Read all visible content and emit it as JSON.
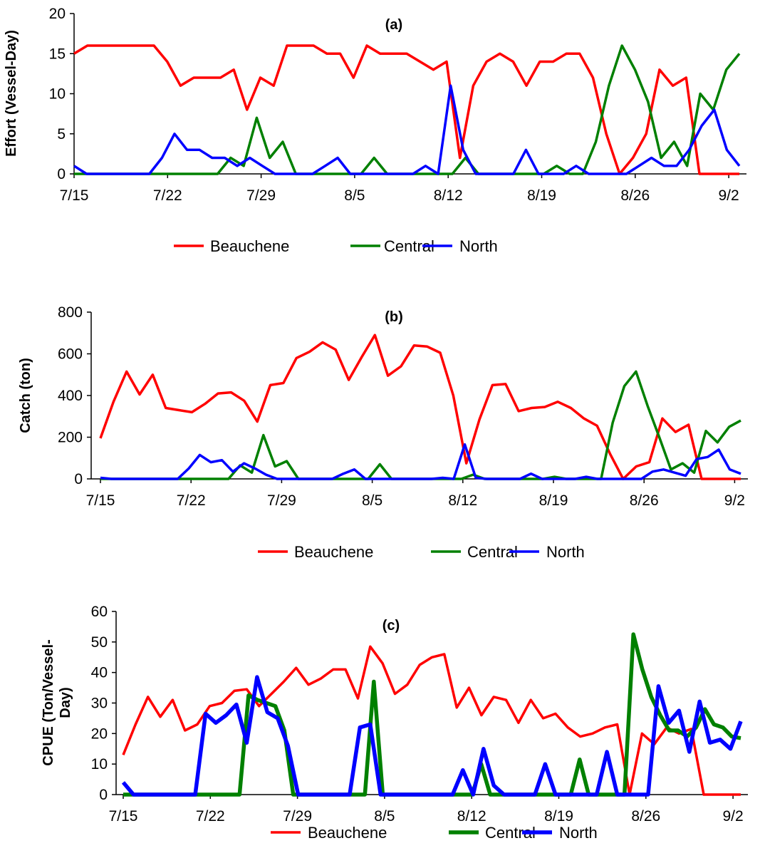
{
  "colors": {
    "beauchene": "#ff0000",
    "central": "#008000",
    "north": "#0000ff",
    "axis": "#000000",
    "background": "#ffffff"
  },
  "chart_data": [
    {
      "type": "line",
      "panel_label": "(a)",
      "ylabel": "Effort (Vessel-Day)",
      "ylim": [
        0,
        20
      ],
      "yticks": [
        0,
        5,
        10,
        15,
        20
      ],
      "x_start": "7/15",
      "xticks": [
        "7/15",
        "7/22",
        "7/29",
        "8/5",
        "8/12",
        "8/19",
        "8/26",
        "9/2"
      ],
      "grid": false,
      "legend_position": "bottom",
      "series": [
        {
          "name": "Beauchene",
          "color": "#ff0000",
          "values": [
            15,
            16,
            16,
            16,
            16,
            16,
            16,
            14,
            11,
            12,
            12,
            12,
            13,
            8,
            12,
            11,
            16,
            16,
            16,
            15,
            15,
            12,
            16,
            15,
            15,
            15,
            14,
            13,
            14,
            2,
            11,
            14,
            15,
            14,
            11,
            14,
            14,
            15,
            15,
            12,
            5,
            0,
            2,
            5,
            13,
            11,
            12,
            0,
            0,
            0,
            0
          ]
        },
        {
          "name": "Central",
          "color": "#008000",
          "values": [
            0,
            0,
            0,
            0,
            0,
            0,
            0,
            0,
            0,
            0,
            0,
            0,
            2,
            1,
            7,
            2,
            4,
            0,
            0,
            0,
            0,
            0,
            0,
            2,
            0,
            0,
            0,
            0,
            0,
            0,
            2,
            0,
            0,
            0,
            0,
            0,
            0,
            1,
            0,
            0,
            4,
            11,
            16,
            13,
            9,
            2,
            4,
            1,
            10,
            8,
            13,
            15
          ]
        },
        {
          "name": "North",
          "color": "#0000ff",
          "values": [
            1,
            0,
            0,
            0,
            0,
            0,
            0,
            2,
            5,
            3,
            3,
            2,
            2,
            1,
            2,
            1,
            0,
            0,
            0,
            0,
            1,
            2,
            0,
            0,
            0,
            0,
            0,
            0,
            1,
            0,
            11,
            3,
            0,
            0,
            0,
            0,
            3,
            0,
            0,
            0,
            1,
            0,
            0,
            0,
            0,
            1,
            2,
            1,
            1,
            3,
            6,
            8,
            3,
            1
          ]
        }
      ]
    },
    {
      "type": "line",
      "panel_label": "(b)",
      "ylabel": "Catch (ton)",
      "ylim": [
        0,
        800
      ],
      "yticks": [
        0,
        200,
        400,
        600,
        800
      ],
      "x_start": "7/15",
      "xticks": [
        "7/15",
        "7/22",
        "7/29",
        "8/5",
        "8/12",
        "8/19",
        "8/26",
        "9/2"
      ],
      "grid": false,
      "legend_position": "bottom",
      "series": [
        {
          "name": "Beauchene",
          "color": "#ff0000",
          "values": [
            195,
            370,
            515,
            405,
            500,
            340,
            330,
            320,
            360,
            410,
            415,
            375,
            275,
            450,
            460,
            580,
            610,
            655,
            620,
            475,
            585,
            690,
            495,
            540,
            640,
            635,
            605,
            400,
            75,
            285,
            450,
            455,
            325,
            340,
            345,
            370,
            340,
            290,
            255,
            120,
            0,
            60,
            80,
            290,
            225,
            260,
            0,
            0,
            0,
            0
          ]
        },
        {
          "name": "Central",
          "color": "#008000",
          "values": [
            0,
            0,
            0,
            0,
            0,
            0,
            0,
            0,
            0,
            0,
            0,
            0,
            65,
            30,
            210,
            60,
            85,
            0,
            0,
            0,
            0,
            0,
            0,
            0,
            70,
            0,
            0,
            0,
            0,
            0,
            0,
            0,
            20,
            0,
            0,
            0,
            0,
            0,
            0,
            10,
            0,
            0,
            0,
            0,
            270,
            445,
            515,
            350,
            200,
            45,
            75,
            30,
            230,
            175,
            250,
            280
          ]
        },
        {
          "name": "North",
          "color": "#0000ff",
          "values": [
            5,
            0,
            0,
            0,
            0,
            0,
            0,
            0,
            50,
            115,
            80,
            90,
            35,
            75,
            50,
            20,
            0,
            0,
            0,
            0,
            0,
            0,
            25,
            45,
            0,
            0,
            0,
            0,
            0,
            0,
            0,
            5,
            0,
            165,
            5,
            0,
            0,
            0,
            0,
            25,
            0,
            0,
            0,
            0,
            10,
            0,
            0,
            0,
            0,
            0,
            35,
            45,
            30,
            15,
            95,
            105,
            140,
            45,
            25
          ]
        }
      ]
    },
    {
      "type": "line",
      "panel_label": "(c)",
      "ylabel": "CPUE (Ton/Vessel-Day)",
      "ylim": [
        0,
        60
      ],
      "yticks": [
        0,
        10,
        20,
        30,
        40,
        50,
        60
      ],
      "x_start": "7/15",
      "xticks": [
        "7/15",
        "7/22",
        "7/29",
        "8/5",
        "8/12",
        "8/19",
        "8/26",
        "9/2"
      ],
      "grid": false,
      "legend_position": "bottom",
      "series": [
        {
          "name": "Beauchene",
          "color": "#ff0000",
          "values": [
            13,
            23,
            32,
            25.5,
            31,
            21,
            23,
            29,
            30,
            34,
            34.5,
            29,
            33,
            37,
            41.5,
            36,
            38,
            41,
            41,
            31.5,
            48.5,
            43,
            33,
            36,
            42.5,
            45,
            46,
            28.5,
            35,
            26,
            32,
            31,
            23.5,
            31,
            25,
            26.5,
            22,
            19,
            20,
            22,
            23,
            0,
            20,
            16.5,
            22,
            20,
            21.5,
            0,
            0,
            0,
            0
          ]
        },
        {
          "name": "Central",
          "color": "#008000",
          "values": [
            0,
            0,
            0,
            0,
            0,
            0,
            0,
            0,
            0,
            0,
            0,
            0,
            0,
            0,
            32.5,
            31,
            30,
            29,
            21,
            0,
            0,
            0,
            0,
            0,
            0,
            0,
            0,
            0,
            37,
            0,
            0,
            0,
            0,
            0,
            0,
            0,
            0,
            0,
            0,
            0,
            10,
            0,
            0,
            0,
            0,
            0,
            0,
            0,
            0,
            0,
            0,
            11.5,
            0,
            0,
            0,
            0,
            0,
            52.5,
            41,
            32,
            26,
            21,
            21,
            19,
            22,
            28,
            23,
            22,
            19,
            18.5
          ]
        },
        {
          "name": "North",
          "color": "#0000ff",
          "values": [
            4,
            0,
            0,
            0,
            0,
            0,
            0,
            0,
            26.5,
            23.5,
            26,
            29.5,
            17,
            38.5,
            27,
            25,
            16,
            0,
            0,
            0,
            0,
            0,
            0,
            22,
            23,
            0,
            0,
            0,
            0,
            0,
            0,
            0,
            0,
            8,
            0,
            15,
            3,
            0,
            0,
            0,
            0,
            10,
            0,
            0,
            0,
            0,
            0,
            14,
            0,
            0,
            0,
            0,
            35.5,
            23.5,
            27.5,
            14,
            30.5,
            17,
            18,
            15,
            24
          ]
        }
      ]
    }
  ]
}
